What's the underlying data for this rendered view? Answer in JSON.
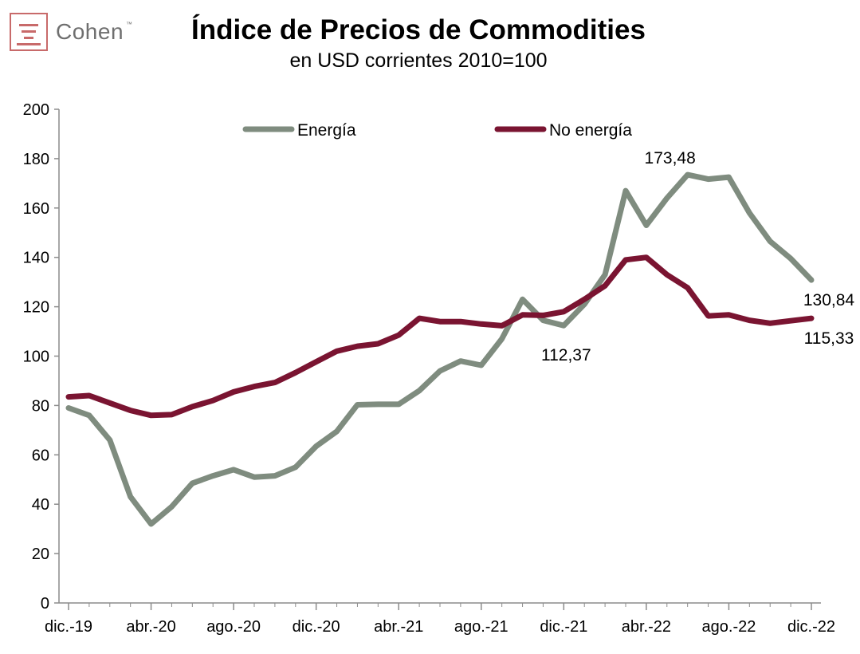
{
  "brand": {
    "name": "Cohen",
    "tm": "™"
  },
  "title": "Índice de Precios de Commodities",
  "subtitle": "en USD corrientes 2010=100",
  "chart_data": {
    "type": "line",
    "ylim": [
      0,
      200
    ],
    "yticks": [
      0,
      20,
      40,
      60,
      80,
      100,
      120,
      140,
      160,
      180,
      200
    ],
    "x": [
      "dic.-19",
      "ene.-20",
      "feb.-20",
      "mar.-20",
      "abr.-20",
      "may.-20",
      "jun.-20",
      "jul.-20",
      "ago.-20",
      "sep.-20",
      "oct.-20",
      "nov.-20",
      "dic.-20",
      "ene.-21",
      "feb.-21",
      "mar.-21",
      "abr.-21",
      "may.-21",
      "jun.-21",
      "jul.-21",
      "ago.-21",
      "sep.-21",
      "oct.-21",
      "nov.-21",
      "dic.-21",
      "ene.-22",
      "feb.-22",
      "mar.-22",
      "abr.-22",
      "may.-22",
      "jun.-22",
      "jul.-22",
      "ago.-22",
      "sep.-22",
      "oct.-22",
      "nov.-22",
      "dic.-22"
    ],
    "xticks": [
      "dic.-19",
      "abr.-20",
      "ago.-20",
      "dic.-20",
      "abr.-21",
      "ago.-21",
      "dic.-21",
      "abr.-22",
      "ago.-22",
      "dic.-22"
    ],
    "legend_position": "top",
    "grid": false,
    "series": [
      {
        "name": "Energía",
        "color": "#7f8c7f",
        "values": [
          79,
          76,
          66,
          43,
          32,
          39,
          48.5,
          51.5,
          54,
          51,
          51.5,
          55,
          63.5,
          69.5,
          80.3,
          80.5,
          80.5,
          86,
          94,
          98,
          96.3,
          107,
          123,
          114.5,
          112.37,
          121,
          133,
          167,
          153,
          164,
          173.48,
          171.7,
          172.5,
          158,
          146.5,
          139.5,
          130.84
        ]
      },
      {
        "name": "No energía",
        "color": "#7a1431",
        "values": [
          83.5,
          84,
          81,
          78,
          76,
          76.3,
          79.5,
          82,
          85.5,
          87.7,
          89.3,
          93.3,
          97.7,
          102,
          104,
          105,
          108.5,
          115.3,
          114,
          114,
          113,
          112.3,
          116.7,
          116.5,
          118,
          123,
          128.5,
          139,
          140,
          133,
          127.7,
          116.3,
          116.7,
          114.5,
          113.3,
          114.3,
          115.33
        ]
      }
    ],
    "annotations": [
      {
        "label": "173,48",
        "series": 0,
        "index": 30
      },
      {
        "label": "112,37",
        "series": 0,
        "index": 24
      },
      {
        "label": "130,84",
        "series": 0,
        "index": 36
      },
      {
        "label": "115,33",
        "series": 1,
        "index": 36
      }
    ]
  }
}
